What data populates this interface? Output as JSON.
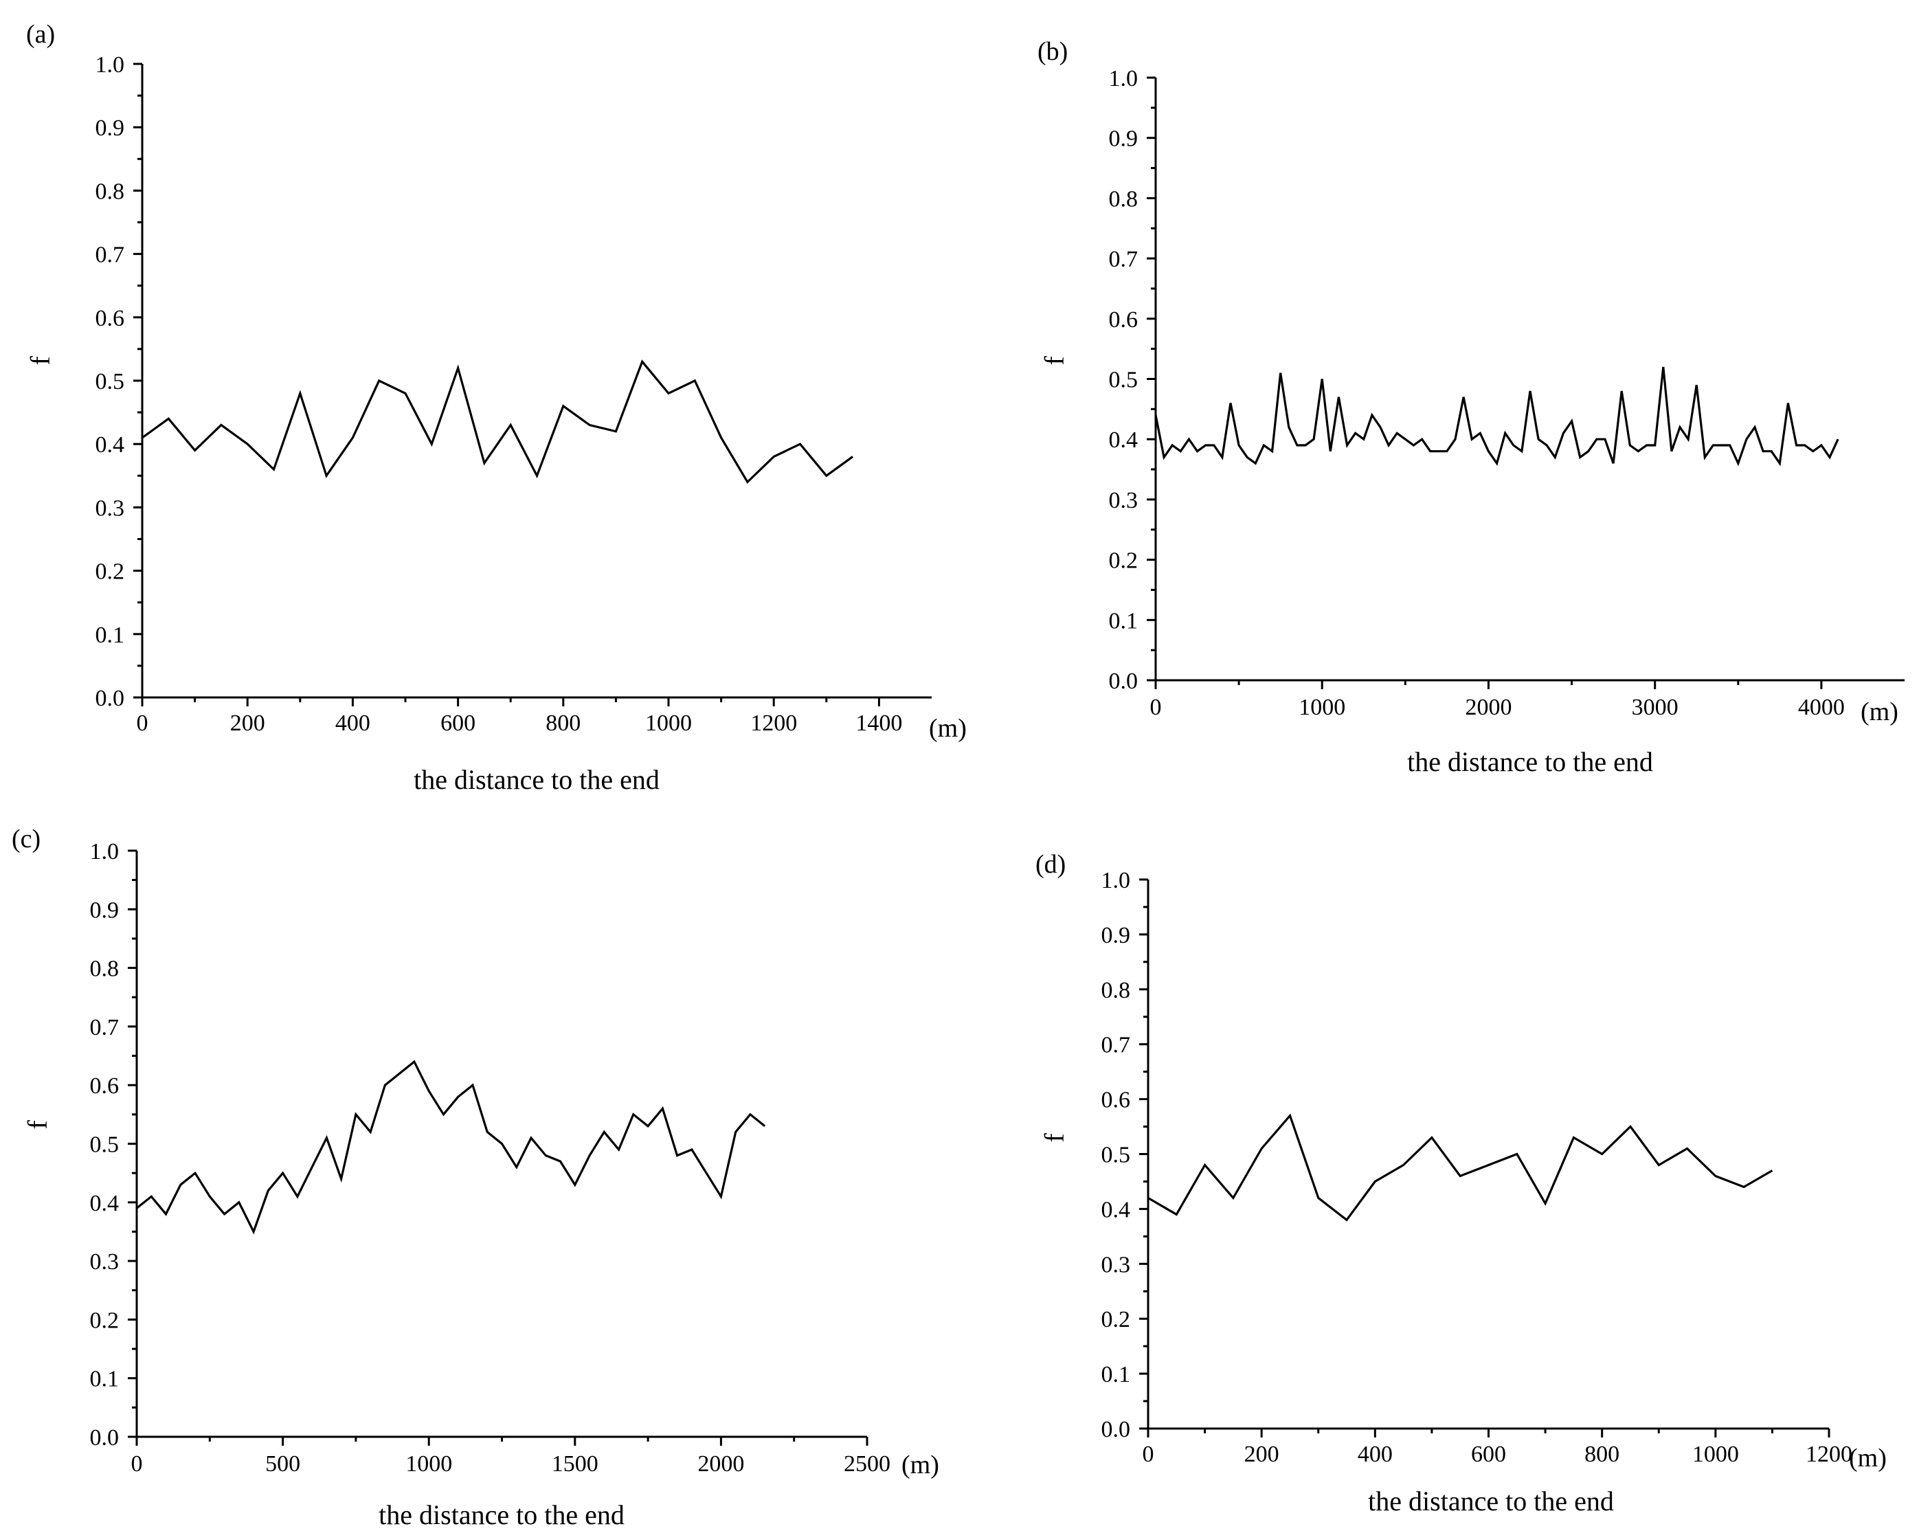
{
  "chart_data": [
    {
      "type": "line",
      "panel_label": "(a)",
      "xlabel": "the distance to the end",
      "x_unit": "(m)",
      "ylabel": "f",
      "xlim": [
        0,
        1500
      ],
      "ylim": [
        0,
        1.0
      ],
      "xticks": [
        0,
        200,
        400,
        600,
        800,
        1000,
        1200,
        1400
      ],
      "yticks": [
        0.0,
        0.1,
        0.2,
        0.3,
        0.4,
        0.5,
        0.6,
        0.7,
        0.8,
        0.9,
        1.0
      ],
      "x_tick_labels": [
        "0",
        "200",
        "400",
        "600",
        "800",
        "1000",
        "1200",
        "1400"
      ],
      "y_tick_labels": [
        "0.0",
        "0.1",
        "0.2",
        "0.3",
        "0.4",
        "0.5",
        "0.6",
        "0.7",
        "0.8",
        "0.9",
        "1.0"
      ],
      "series": [
        {
          "name": "f",
          "x": [
            0,
            50,
            100,
            150,
            200,
            250,
            300,
            350,
            400,
            450,
            500,
            550,
            600,
            650,
            700,
            750,
            800,
            850,
            900,
            950,
            1000,
            1050,
            1100,
            1150,
            1200,
            1250,
            1300,
            1350
          ],
          "values": [
            0.41,
            0.44,
            0.39,
            0.43,
            0.4,
            0.36,
            0.48,
            0.35,
            0.41,
            0.5,
            0.48,
            0.4,
            0.52,
            0.37,
            0.43,
            0.35,
            0.46,
            0.43,
            0.42,
            0.53,
            0.48,
            0.5,
            0.41,
            0.34,
            0.38,
            0.4,
            0.35,
            0.38
          ]
        }
      ]
    },
    {
      "type": "line",
      "panel_label": "(b)",
      "xlabel": "the distance to the end",
      "x_unit": "(m)",
      "ylabel": "f",
      "xlim": [
        0,
        4500
      ],
      "ylim": [
        0,
        1.0
      ],
      "xticks": [
        0,
        1000,
        2000,
        3000,
        4000
      ],
      "yticks": [
        0.0,
        0.1,
        0.2,
        0.3,
        0.4,
        0.5,
        0.6,
        0.7,
        0.8,
        0.9,
        1.0
      ],
      "x_tick_labels": [
        "0",
        "1000",
        "2000",
        "3000",
        "4000"
      ],
      "y_tick_labels": [
        "0.0",
        "0.1",
        "0.2",
        "0.3",
        "0.4",
        "0.5",
        "0.6",
        "0.7",
        "0.8",
        "0.9",
        "1.0"
      ],
      "series": [
        {
          "name": "f",
          "x": [
            0,
            50,
            100,
            150,
            200,
            250,
            300,
            350,
            400,
            450,
            500,
            550,
            600,
            650,
            700,
            750,
            800,
            850,
            900,
            950,
            1000,
            1050,
            1100,
            1150,
            1200,
            1250,
            1300,
            1350,
            1400,
            1450,
            1500,
            1550,
            1600,
            1650,
            1700,
            1750,
            1800,
            1850,
            1900,
            1950,
            2000,
            2050,
            2100,
            2150,
            2200,
            2250,
            2300,
            2350,
            2400,
            2450,
            2500,
            2550,
            2600,
            2650,
            2700,
            2750,
            2800,
            2850,
            2900,
            2950,
            3000,
            3050,
            3100,
            3150,
            3200,
            3250,
            3300,
            3350,
            3400,
            3450,
            3500,
            3550,
            3600,
            3650,
            3700,
            3750,
            3800,
            3850,
            3900,
            3950,
            4000,
            4050,
            4100
          ],
          "values": [
            0.44,
            0.37,
            0.39,
            0.38,
            0.4,
            0.38,
            0.39,
            0.39,
            0.37,
            0.46,
            0.39,
            0.37,
            0.36,
            0.39,
            0.38,
            0.51,
            0.42,
            0.39,
            0.39,
            0.4,
            0.5,
            0.38,
            0.47,
            0.39,
            0.41,
            0.4,
            0.44,
            0.42,
            0.39,
            0.41,
            0.4,
            0.39,
            0.4,
            0.38,
            0.38,
            0.38,
            0.4,
            0.47,
            0.4,
            0.41,
            0.38,
            0.36,
            0.41,
            0.39,
            0.38,
            0.48,
            0.4,
            0.39,
            0.37,
            0.41,
            0.43,
            0.37,
            0.38,
            0.4,
            0.4,
            0.36,
            0.48,
            0.39,
            0.38,
            0.39,
            0.39,
            0.52,
            0.38,
            0.42,
            0.4,
            0.49,
            0.37,
            0.39,
            0.39,
            0.39,
            0.36,
            0.4,
            0.42,
            0.38,
            0.38,
            0.36,
            0.46,
            0.39,
            0.39,
            0.38,
            0.39,
            0.37,
            0.4
          ]
        }
      ]
    },
    {
      "type": "line",
      "panel_label": "(c)",
      "xlabel": "the distance to the end",
      "x_unit": "(m)",
      "ylabel": "f",
      "xlim": [
        0,
        2500
      ],
      "ylim": [
        0,
        1.0
      ],
      "xticks": [
        0,
        500,
        1000,
        1500,
        2000,
        2500
      ],
      "yticks": [
        0.0,
        0.1,
        0.2,
        0.3,
        0.4,
        0.5,
        0.6,
        0.7,
        0.8,
        0.9,
        1.0
      ],
      "x_tick_labels": [
        "0",
        "500",
        "1000",
        "1500",
        "2000",
        "2500"
      ],
      "y_tick_labels": [
        "0.0",
        "0.1",
        "0.2",
        "0.3",
        "0.4",
        "0.5",
        "0.6",
        "0.7",
        "0.8",
        "0.9",
        "1.0"
      ],
      "series": [
        {
          "name": "f",
          "x": [
            0,
            50,
            100,
            150,
            200,
            250,
            300,
            350,
            400,
            450,
            500,
            550,
            600,
            650,
            700,
            750,
            800,
            850,
            900,
            950,
            1000,
            1050,
            1100,
            1150,
            1200,
            1250,
            1300,
            1350,
            1400,
            1450,
            1500,
            1550,
            1600,
            1650,
            1700,
            1750,
            1800,
            1850,
            1900,
            1950,
            2000,
            2050,
            2100,
            2150
          ],
          "values": [
            0.39,
            0.41,
            0.38,
            0.43,
            0.45,
            0.41,
            0.38,
            0.4,
            0.35,
            0.42,
            0.45,
            0.41,
            0.46,
            0.51,
            0.44,
            0.55,
            0.52,
            0.6,
            0.62,
            0.64,
            0.59,
            0.55,
            0.58,
            0.6,
            0.52,
            0.5,
            0.46,
            0.51,
            0.48,
            0.47,
            0.43,
            0.48,
            0.52,
            0.49,
            0.55,
            0.53,
            0.56,
            0.48,
            0.49,
            0.45,
            0.41,
            0.52,
            0.55,
            0.53
          ]
        }
      ]
    },
    {
      "type": "line",
      "panel_label": "(d)",
      "xlabel": "the distance to the end",
      "x_unit": "(m)",
      "ylabel": "f",
      "xlim": [
        0,
        1200
      ],
      "ylim": [
        0,
        1.0
      ],
      "xticks": [
        0,
        200,
        400,
        600,
        800,
        1000,
        1200
      ],
      "yticks": [
        0.0,
        0.1,
        0.2,
        0.3,
        0.4,
        0.5,
        0.6,
        0.7,
        0.8,
        0.9,
        1.0
      ],
      "x_tick_labels": [
        "0",
        "200",
        "400",
        "600",
        "800",
        "1000",
        "1200"
      ],
      "y_tick_labels": [
        "0.0",
        "0.1",
        "0.2",
        "0.3",
        "0.4",
        "0.5",
        "0.6",
        "0.7",
        "0.8",
        "0.9",
        "1.0"
      ],
      "series": [
        {
          "name": "f",
          "x": [
            0,
            50,
            100,
            150,
            200,
            250,
            300,
            350,
            400,
            450,
            500,
            550,
            600,
            650,
            700,
            750,
            800,
            850,
            900,
            950,
            1000,
            1050,
            1100
          ],
          "values": [
            0.42,
            0.39,
            0.48,
            0.42,
            0.51,
            0.57,
            0.42,
            0.38,
            0.45,
            0.48,
            0.53,
            0.46,
            0.48,
            0.5,
            0.41,
            0.53,
            0.5,
            0.55,
            0.48,
            0.51,
            0.46,
            0.44,
            0.47
          ]
        }
      ]
    }
  ]
}
